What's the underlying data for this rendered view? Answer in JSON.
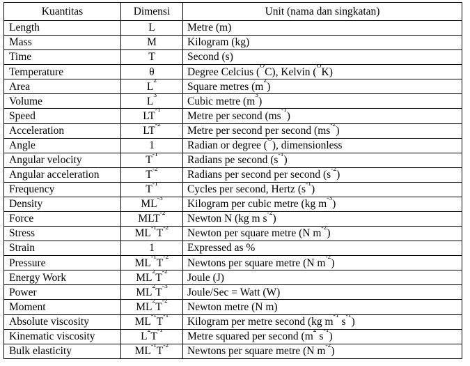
{
  "table": {
    "headers": [
      "Kuantitas",
      "Dimensi",
      "Unit (nama dan singkatan)"
    ],
    "rows": [
      {
        "kuantitas": "Length",
        "dimensi": "L",
        "unit": "Metre (m)"
      },
      {
        "kuantitas": "Mass",
        "dimensi": "M",
        "unit": "Kilogram (kg)"
      },
      {
        "kuantitas": "Time",
        "dimensi": "T",
        "unit": "Second (s)"
      },
      {
        "kuantitas": "Temperature",
        "dimensi": "θ",
        "unit": "Degree Celcius (^{O}C), Kelvin (^{O}K)"
      },
      {
        "kuantitas": "Area",
        "dimensi": "L^{2}",
        "unit": "Square metres (m^{2})"
      },
      {
        "kuantitas": "Volume",
        "dimensi": "L^{3}",
        "unit": "Cubic metre (m^{3})"
      },
      {
        "kuantitas": "Speed",
        "dimensi": "LT^{-1}",
        "unit": "Metre per second (ms^{-1})"
      },
      {
        "kuantitas": "Acceleration",
        "dimensi": "LT^{-2}",
        "unit": "Metre per second per second (ms^{-2})"
      },
      {
        "kuantitas": "Angle",
        "dimensi": "1",
        "unit": "Radian or degree (^{O}), dimensionless"
      },
      {
        "kuantitas": "Angular velocity",
        "dimensi": "T^{-1}",
        "unit": "Radians pe second (s^{-1})"
      },
      {
        "kuantitas": "Angular acceleration",
        "dimensi": "T^{-2}",
        "unit": "Radians per second per second (s^{-2})"
      },
      {
        "kuantitas": "Frequency",
        "dimensi": "T^{-1}",
        "unit": "Cycles per second, Hertz (s^{-1})"
      },
      {
        "kuantitas": "Density",
        "dimensi": "ML^{-3}",
        "unit": "Kilogram per cubic metre (kg m^{-3})"
      },
      {
        "kuantitas": "Force",
        "dimensi": "MLT^{-2}",
        "unit": "Newton N (kg m s^{-2})"
      },
      {
        "kuantitas": "Stress",
        "dimensi": "ML^{-1}T^{-2}",
        "unit": "Newton per square metre (N m^{-2})"
      },
      {
        "kuantitas": "Strain",
        "dimensi": "1",
        "unit": "Expressed as %"
      },
      {
        "kuantitas": "Pressure",
        "dimensi": "ML^{-1}T^{-2}",
        "unit": "Newtons per square metre (N m^{-2})"
      },
      {
        "kuantitas": "Energy Work",
        "dimensi": "ML^{2}T^{-2}",
        "unit": "Joule (J)"
      },
      {
        "kuantitas": "Power",
        "dimensi": "ML^{2}T^{-3}",
        "unit": "Joule/Sec = Watt (W)"
      },
      {
        "kuantitas": "Moment",
        "dimensi": "ML^{2}T^{-2}",
        "unit": "Newton metre (N m)"
      },
      {
        "kuantitas": "Absolute viscosity",
        "dimensi": "ML^{-1}T^{-1}",
        "unit": "Kilogram per metre second (kg m^{-1} s^{-1})"
      },
      {
        "kuantitas": "Kinematic viscosity",
        "dimensi": "L^{2}T^{-1}",
        "unit": "Metre squared per second (m^{2} s^{-1})"
      },
      {
        "kuantitas": "Bulk elasticity",
        "dimensi": "ML^{-1}T^{-2}",
        "unit": "Newtons per square metre (N m^{-2})"
      }
    ]
  }
}
